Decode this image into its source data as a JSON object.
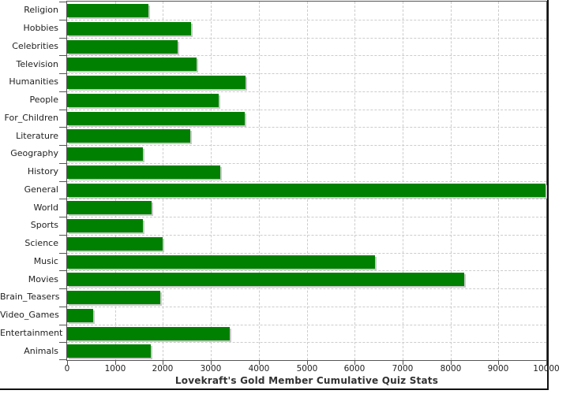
{
  "chart_data": {
    "type": "bar",
    "orientation": "horizontal",
    "title": "Lovekraft's Gold Member Cumulative Quiz Stats",
    "categories": [
      "Religion",
      "Hobbies",
      "Celebrities",
      "Television",
      "Humanities",
      "People",
      "For_Children",
      "Literature",
      "Geography",
      "History",
      "General",
      "World",
      "Sports",
      "Science",
      "Music",
      "Movies",
      "Brain_Teasers",
      "Video_Games",
      "Entertainment",
      "Animals"
    ],
    "values": [
      1700,
      2580,
      2300,
      2710,
      3720,
      3160,
      3700,
      2570,
      1580,
      3200,
      9980,
      1760,
      1580,
      2000,
      6420,
      8290,
      1950,
      550,
      3400,
      1740
    ],
    "xlim": [
      0,
      10000
    ],
    "xticks": [
      0,
      1000,
      2000,
      3000,
      4000,
      5000,
      6000,
      7000,
      8000,
      9000,
      10000
    ],
    "grid": "dashed",
    "legend": "none",
    "colors": {
      "bar": "#008000",
      "bar_shadow": "#c9c9c9",
      "gridline": "#cccccc",
      "frame": "#555555",
      "tick_text": "#222222",
      "title_text": "#333333",
      "background": "#ffffff"
    }
  }
}
